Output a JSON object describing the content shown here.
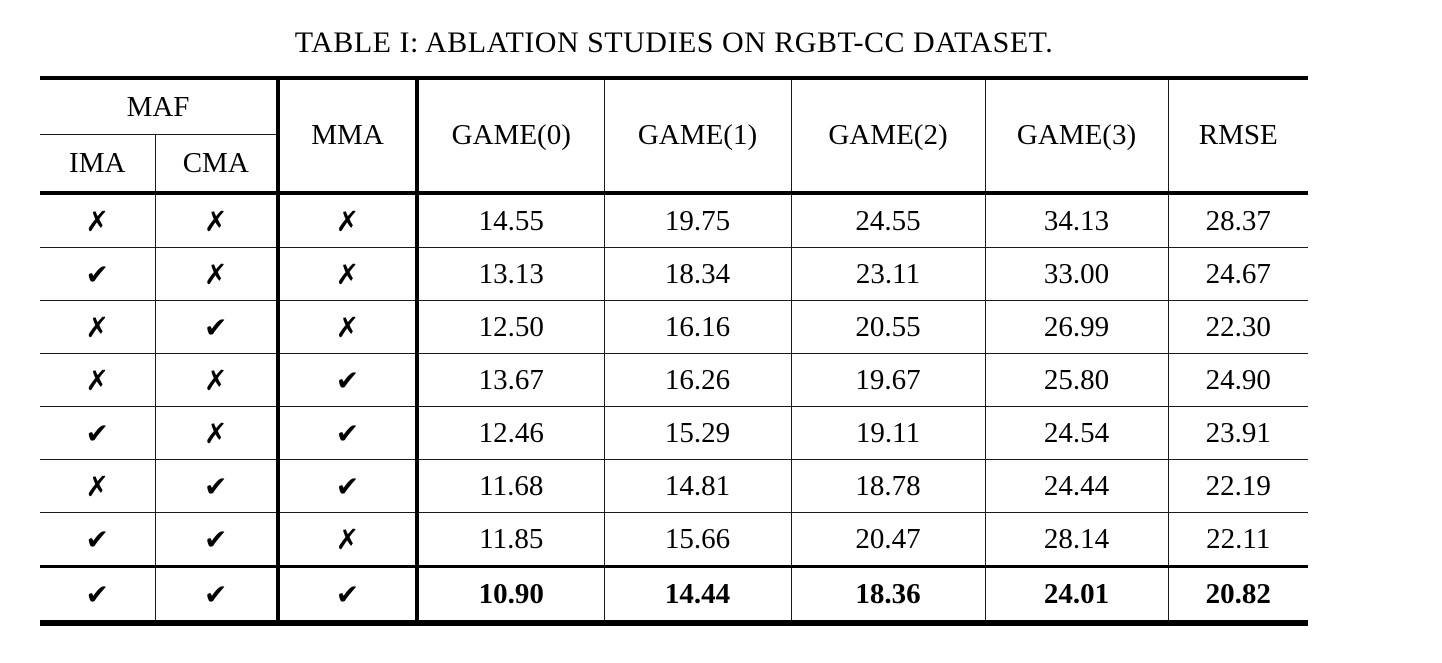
{
  "caption": "TABLE I: ABLATION STUDIES ON RGBT-CC DATASET.",
  "table": {
    "header": {
      "maf": "MAF",
      "ima": "IMA",
      "cma": "CMA",
      "mma": "MMA",
      "metrics": [
        "GAME(0)",
        "GAME(1)",
        "GAME(2)",
        "GAME(3)",
        "RMSE"
      ]
    },
    "icons": {
      "check": "✔",
      "cross": "✗"
    },
    "rows": [
      {
        "marks": [
          "cross",
          "cross",
          "cross"
        ],
        "values": [
          "14.55",
          "19.75",
          "24.55",
          "34.13",
          "28.37"
        ],
        "bold": false
      },
      {
        "marks": [
          "check",
          "cross",
          "cross"
        ],
        "values": [
          "13.13",
          "18.34",
          "23.11",
          "33.00",
          "24.67"
        ],
        "bold": false
      },
      {
        "marks": [
          "cross",
          "check",
          "cross"
        ],
        "values": [
          "12.50",
          "16.16",
          "20.55",
          "26.99",
          "22.30"
        ],
        "bold": false
      },
      {
        "marks": [
          "cross",
          "cross",
          "check"
        ],
        "values": [
          "13.67",
          "16.26",
          "19.67",
          "25.80",
          "24.90"
        ],
        "bold": false
      },
      {
        "marks": [
          "check",
          "cross",
          "check"
        ],
        "values": [
          "12.46",
          "15.29",
          "19.11",
          "24.54",
          "23.91"
        ],
        "bold": false
      },
      {
        "marks": [
          "cross",
          "check",
          "check"
        ],
        "values": [
          "11.68",
          "14.81",
          "18.78",
          "24.44",
          "22.19"
        ],
        "bold": false
      },
      {
        "marks": [
          "check",
          "check",
          "cross"
        ],
        "values": [
          "11.85",
          "15.66",
          "20.47",
          "28.14",
          "22.11"
        ],
        "bold": false
      },
      {
        "marks": [
          "check",
          "check",
          "check"
        ],
        "values": [
          "10.90",
          "14.44",
          "18.36",
          "24.01",
          "20.82"
        ],
        "bold": true
      }
    ]
  }
}
